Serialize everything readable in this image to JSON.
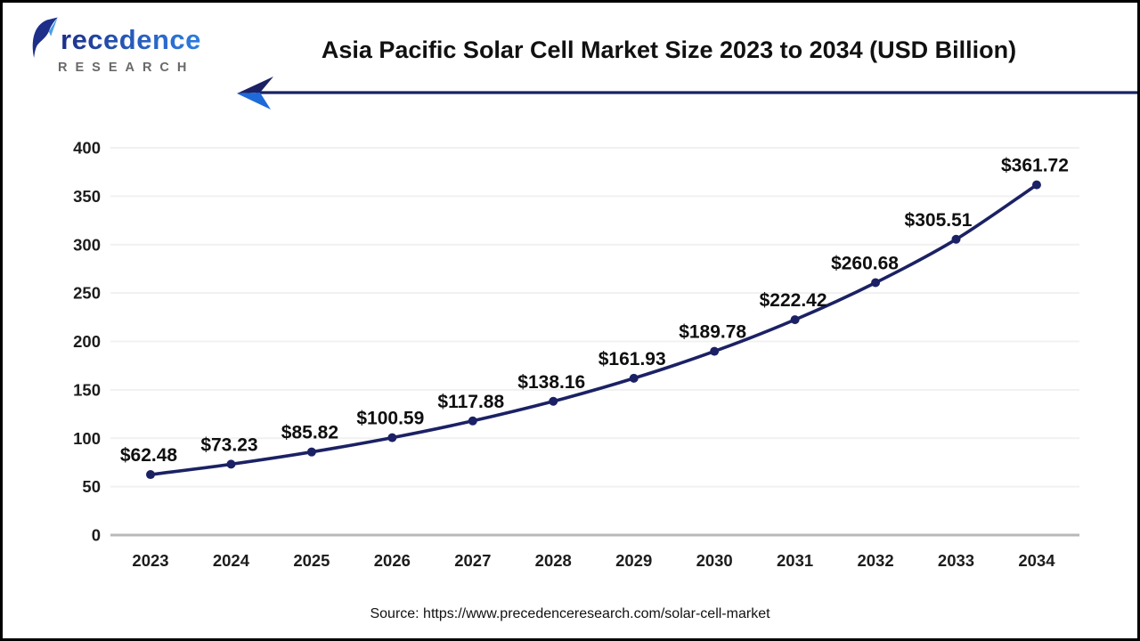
{
  "logo": {
    "brand": "Precedence",
    "brand_display_rest": "recedence",
    "subtitle": "RESEARCH"
  },
  "title": "Asia Pacific Solar Cell Market Size 2023 to 2034 (USD Billion)",
  "source": "Source: https://www.precedenceresearch.com/solar-cell-market",
  "colors": {
    "line": "#1b2164",
    "marker": "#1b2164",
    "grid": "#f1f1f1",
    "axis": "#b8b8b8",
    "tick_label": "#1d1d1d",
    "data_label": "#0f0f0f",
    "arrow_dark": "#1b2164",
    "arrow_light": "#1f6ad9",
    "brand_gradient_start": "#1d2f88",
    "brand_gradient_end": "#2e7de0",
    "subtitle_gray": "#696969"
  },
  "chart_data": {
    "type": "line",
    "title": "Asia Pacific Solar Cell Market Size 2023 to 2034 (USD Billion)",
    "categories": [
      "2023",
      "2024",
      "2025",
      "2026",
      "2027",
      "2028",
      "2029",
      "2030",
      "2031",
      "2032",
      "2033",
      "2034"
    ],
    "series": [
      {
        "name": "Asia Pacific Solar Cell Market Size",
        "values": [
          62.48,
          73.23,
          85.82,
          100.59,
          117.88,
          138.16,
          161.93,
          189.78,
          222.42,
          260.68,
          305.51,
          361.72
        ]
      }
    ],
    "data_label_prefix": "$",
    "data_labels": [
      "$62.48",
      "$73.23",
      "$85.82",
      "$100.59",
      "$117.88",
      "$138.16",
      "$161.93",
      "$189.78",
      "$222.42",
      "$260.68",
      "$305.51",
      "$361.72"
    ],
    "xlabel": "",
    "ylabel": "",
    "ylim": [
      0,
      400
    ],
    "ytick_step": 50,
    "yticks": [
      0,
      50,
      100,
      150,
      200,
      250,
      300,
      350,
      400
    ],
    "grid": true,
    "legend": "none",
    "marker": "circle",
    "smooth": true
  }
}
